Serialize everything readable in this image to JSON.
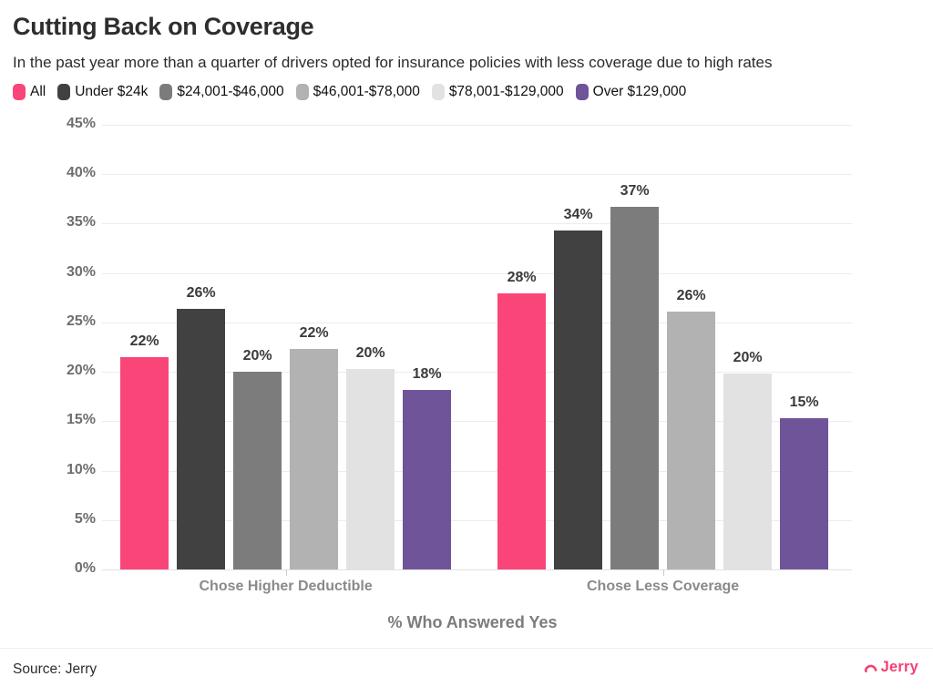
{
  "title": "Cutting Back on Coverage",
  "subtitle": "In the past year more than a quarter of drivers opted for insurance policies with less coverage due to high rates",
  "chart_data": {
    "type": "bar",
    "categories": [
      "Chose Higher Deductible",
      "Chose Less Coverage"
    ],
    "series": [
      {
        "name": "All",
        "color": "#fa4578",
        "values": [
          21.5,
          27.9
        ],
        "labels": [
          "22%",
          "28%"
        ]
      },
      {
        "name": "Under $24k",
        "color": "#414141",
        "values": [
          26.4,
          34.3
        ],
        "labels": [
          "26%",
          "34%"
        ]
      },
      {
        "name": "$24,001-$46,000",
        "color": "#7c7c7c",
        "values": [
          20.0,
          36.7
        ],
        "labels": [
          "20%",
          "37%"
        ]
      },
      {
        "name": "$46,001-$78,000",
        "color": "#b2b2b2",
        "values": [
          22.3,
          26.1
        ],
        "labels": [
          "22%",
          "26%"
        ]
      },
      {
        "name": "$78,001-$129,000",
        "color": "#e2e2e2",
        "values": [
          20.3,
          19.8
        ],
        "labels": [
          "20%",
          "20%"
        ]
      },
      {
        "name": "Over $129,000",
        "color": "#6f5499",
        "values": [
          18.2,
          15.3
        ],
        "labels": [
          "18%",
          "15%"
        ]
      }
    ],
    "title": "Cutting Back on Coverage",
    "xlabel": "% Who Answered Yes",
    "ylabel": "",
    "ylim": [
      0,
      45
    ],
    "ytick_step": 5,
    "ytick_labels": [
      "0%",
      "5%",
      "10%",
      "15%",
      "20%",
      "25%",
      "30%",
      "35%",
      "40%",
      "45%"
    ],
    "grid": true,
    "legend_position": "top"
  },
  "footer": {
    "source": "Source: Jerry",
    "brand": "Jerry"
  },
  "colors": {
    "accent_pink": "#fa4578",
    "brand_pink": "#f43f74",
    "text_dark": "#2e2e2e",
    "axis_gray": "#6e6e6e",
    "gridline": "#ececec"
  }
}
